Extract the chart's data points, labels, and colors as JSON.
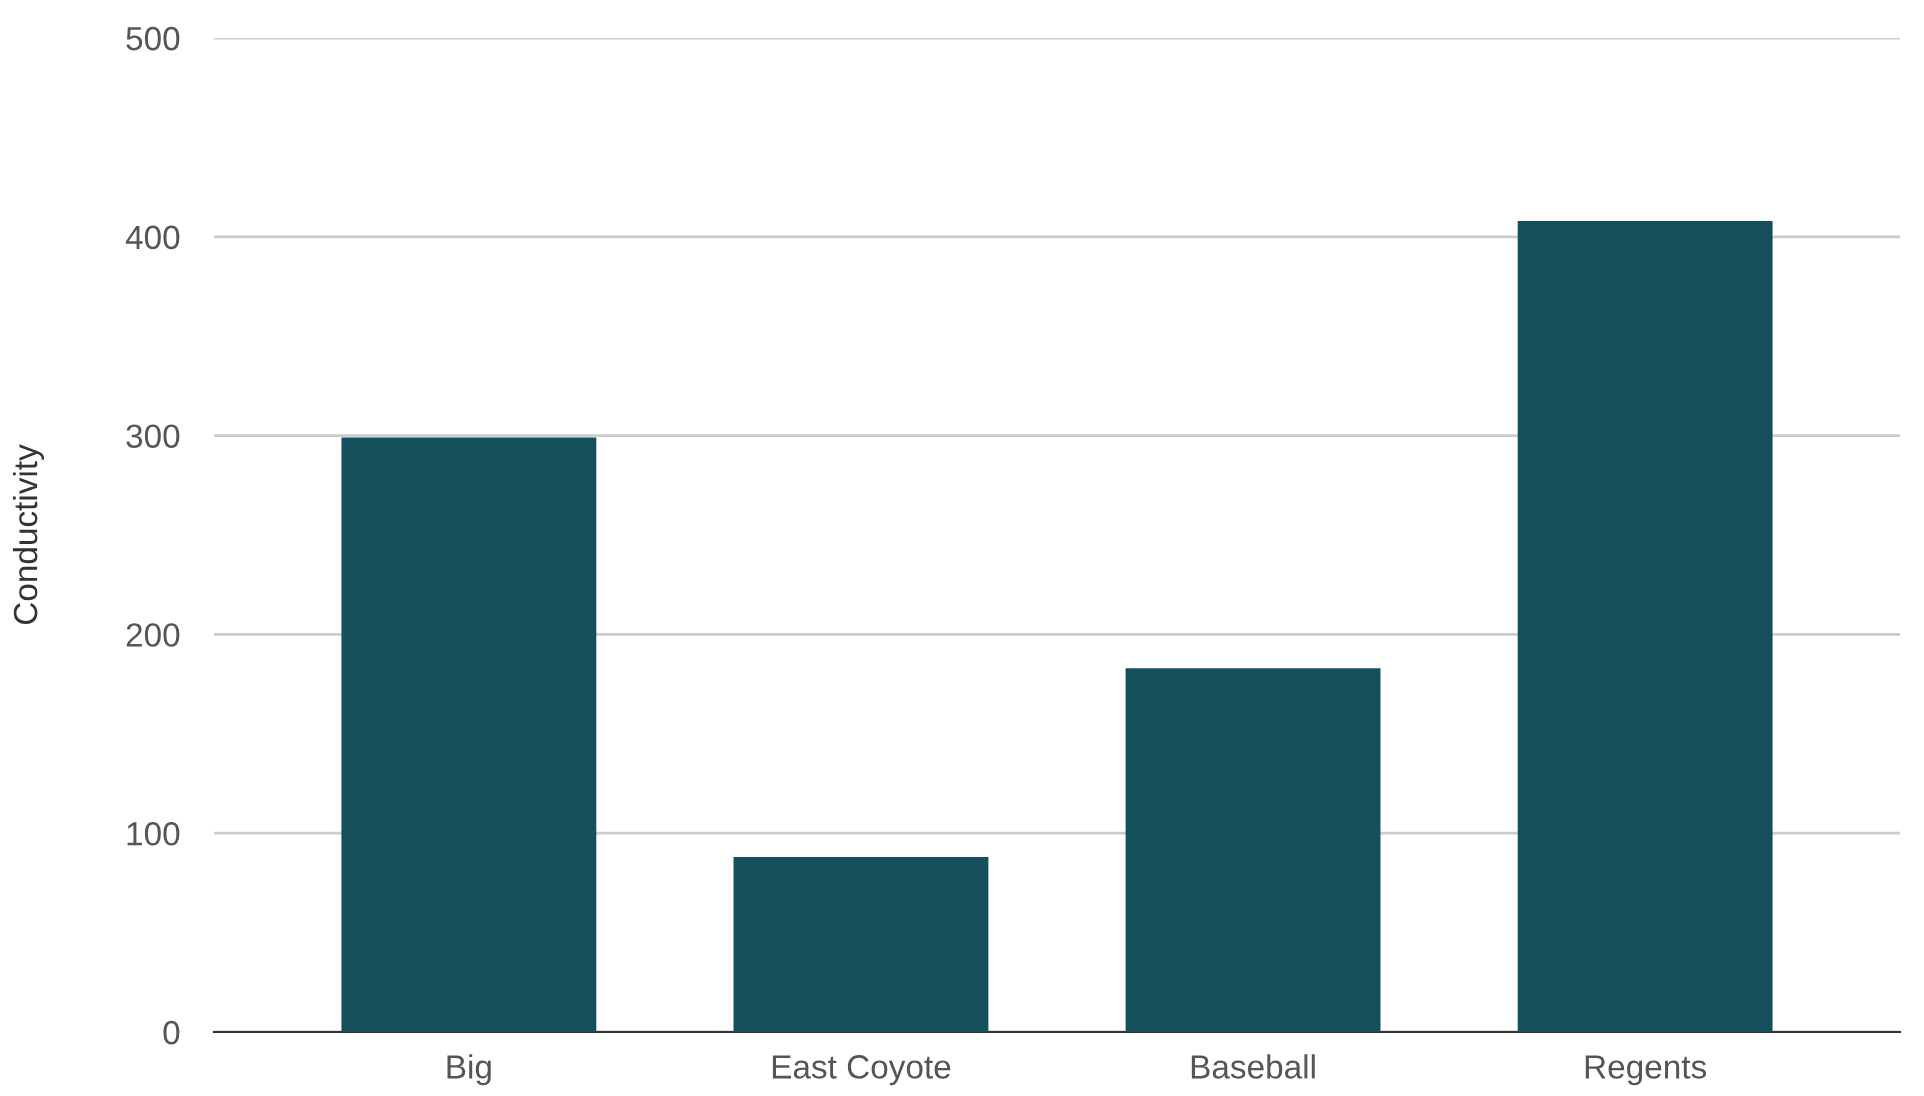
{
  "chart_data": {
    "type": "bar",
    "ylabel": "Conductivity",
    "categories": [
      "Big",
      "East Coyote",
      "Baseball",
      "Regents"
    ],
    "values": [
      299,
      88,
      183,
      408
    ],
    "color": "#164f5c",
    "ylim": [
      0,
      500
    ],
    "yticks": [
      0,
      100,
      200,
      300,
      400,
      500
    ],
    "grid": "y",
    "legend": false
  }
}
